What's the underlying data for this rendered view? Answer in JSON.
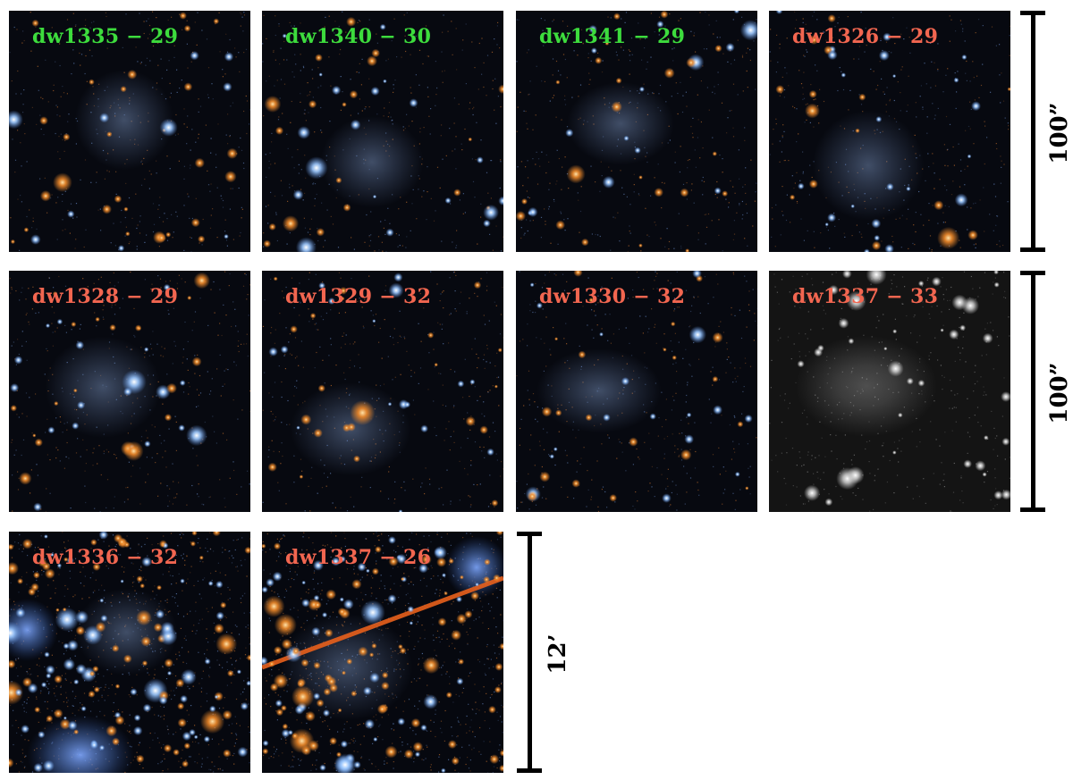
{
  "colors": {
    "label_green": "#3ddc3d",
    "label_red": "#f26650",
    "scale_bar": "#000000"
  },
  "panels": [
    {
      "label": "dw1335 − 29",
      "label_color": "green",
      "style": "color"
    },
    {
      "label": "dw1340 − 30",
      "label_color": "green",
      "style": "color"
    },
    {
      "label": "dw1341 − 29",
      "label_color": "green",
      "style": "color"
    },
    {
      "label": "dw1326 − 29",
      "label_color": "red",
      "style": "color"
    },
    {
      "label": "dw1328 − 29",
      "label_color": "red",
      "style": "color"
    },
    {
      "label": "dw1329 − 32",
      "label_color": "red",
      "style": "color"
    },
    {
      "label": "dw1330 − 32",
      "label_color": "red",
      "style": "color"
    },
    {
      "label": "dw1337 − 33",
      "label_color": "red",
      "style": "grayscale"
    },
    {
      "label": "dw1336 − 32",
      "label_color": "red",
      "style": "wide-field"
    },
    {
      "label": "dw1337 − 26",
      "label_color": "red",
      "style": "wide-field"
    }
  ],
  "scale_bars": [
    {
      "label": "100”"
    },
    {
      "label": "100”"
    },
    {
      "label": "12’"
    }
  ]
}
